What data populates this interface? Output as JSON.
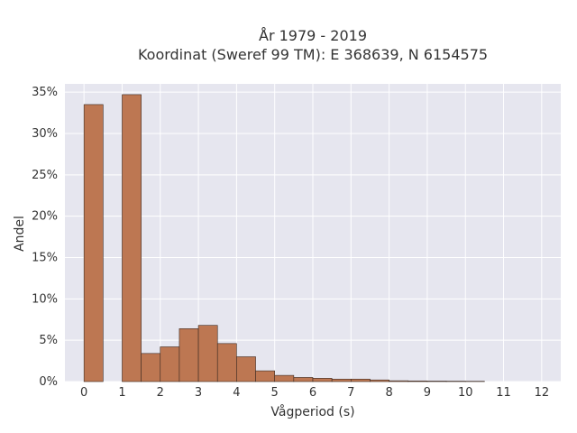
{
  "chart_data": {
    "type": "bar",
    "title_line1": "År 1979 - 2019",
    "title_line2": "Koordinat (Sweref 99 TM): E 368639, N 6154575",
    "xlabel": "Vågperiod (s)",
    "ylabel": "Andel",
    "xlim": [
      -0.5,
      12.5
    ],
    "ylim": [
      0,
      36
    ],
    "x_ticks": [
      0,
      1,
      2,
      3,
      4,
      5,
      6,
      7,
      8,
      9,
      10,
      11,
      12
    ],
    "x_tick_labels": [
      "0",
      "1",
      "2",
      "3",
      "4",
      "5",
      "6",
      "7",
      "8",
      "9",
      "10",
      "11",
      "12"
    ],
    "y_ticks": [
      0,
      5,
      10,
      15,
      20,
      25,
      30,
      35
    ],
    "y_tick_labels": [
      "0%",
      "5%",
      "10%",
      "15%",
      "20%",
      "25%",
      "30%",
      "35%"
    ],
    "bins": [
      {
        "x0": 0.0,
        "x1": 0.5,
        "value": 33.5
      },
      {
        "x0": 1.0,
        "x1": 1.5,
        "value": 34.7
      },
      {
        "x0": 1.5,
        "x1": 2.0,
        "value": 3.4
      },
      {
        "x0": 2.0,
        "x1": 2.5,
        "value": 4.2
      },
      {
        "x0": 2.5,
        "x1": 3.0,
        "value": 6.4
      },
      {
        "x0": 3.0,
        "x1": 3.5,
        "value": 6.8
      },
      {
        "x0": 3.5,
        "x1": 4.0,
        "value": 4.6
      },
      {
        "x0": 4.0,
        "x1": 4.5,
        "value": 3.0
      },
      {
        "x0": 4.5,
        "x1": 5.0,
        "value": 1.3
      },
      {
        "x0": 5.0,
        "x1": 5.5,
        "value": 0.75
      },
      {
        "x0": 5.5,
        "x1": 6.0,
        "value": 0.5
      },
      {
        "x0": 6.0,
        "x1": 6.5,
        "value": 0.4
      },
      {
        "x0": 6.5,
        "x1": 7.0,
        "value": 0.3
      },
      {
        "x0": 7.0,
        "x1": 7.5,
        "value": 0.3
      },
      {
        "x0": 7.5,
        "x1": 8.0,
        "value": 0.2
      },
      {
        "x0": 8.0,
        "x1": 8.5,
        "value": 0.1
      },
      {
        "x0": 8.5,
        "x1": 9.0,
        "value": 0.08
      },
      {
        "x0": 9.0,
        "x1": 9.5,
        "value": 0.06
      },
      {
        "x0": 9.5,
        "x1": 10.0,
        "value": 0.05
      },
      {
        "x0": 10.0,
        "x1": 10.5,
        "value": 0.04
      }
    ],
    "grid": true,
    "colors": {
      "bar_fill": "#bd7752",
      "bar_stroke": "#3b2a22",
      "plot_bg": "#e6e6ef",
      "grid": "#ffffff",
      "text": "#333333"
    }
  }
}
